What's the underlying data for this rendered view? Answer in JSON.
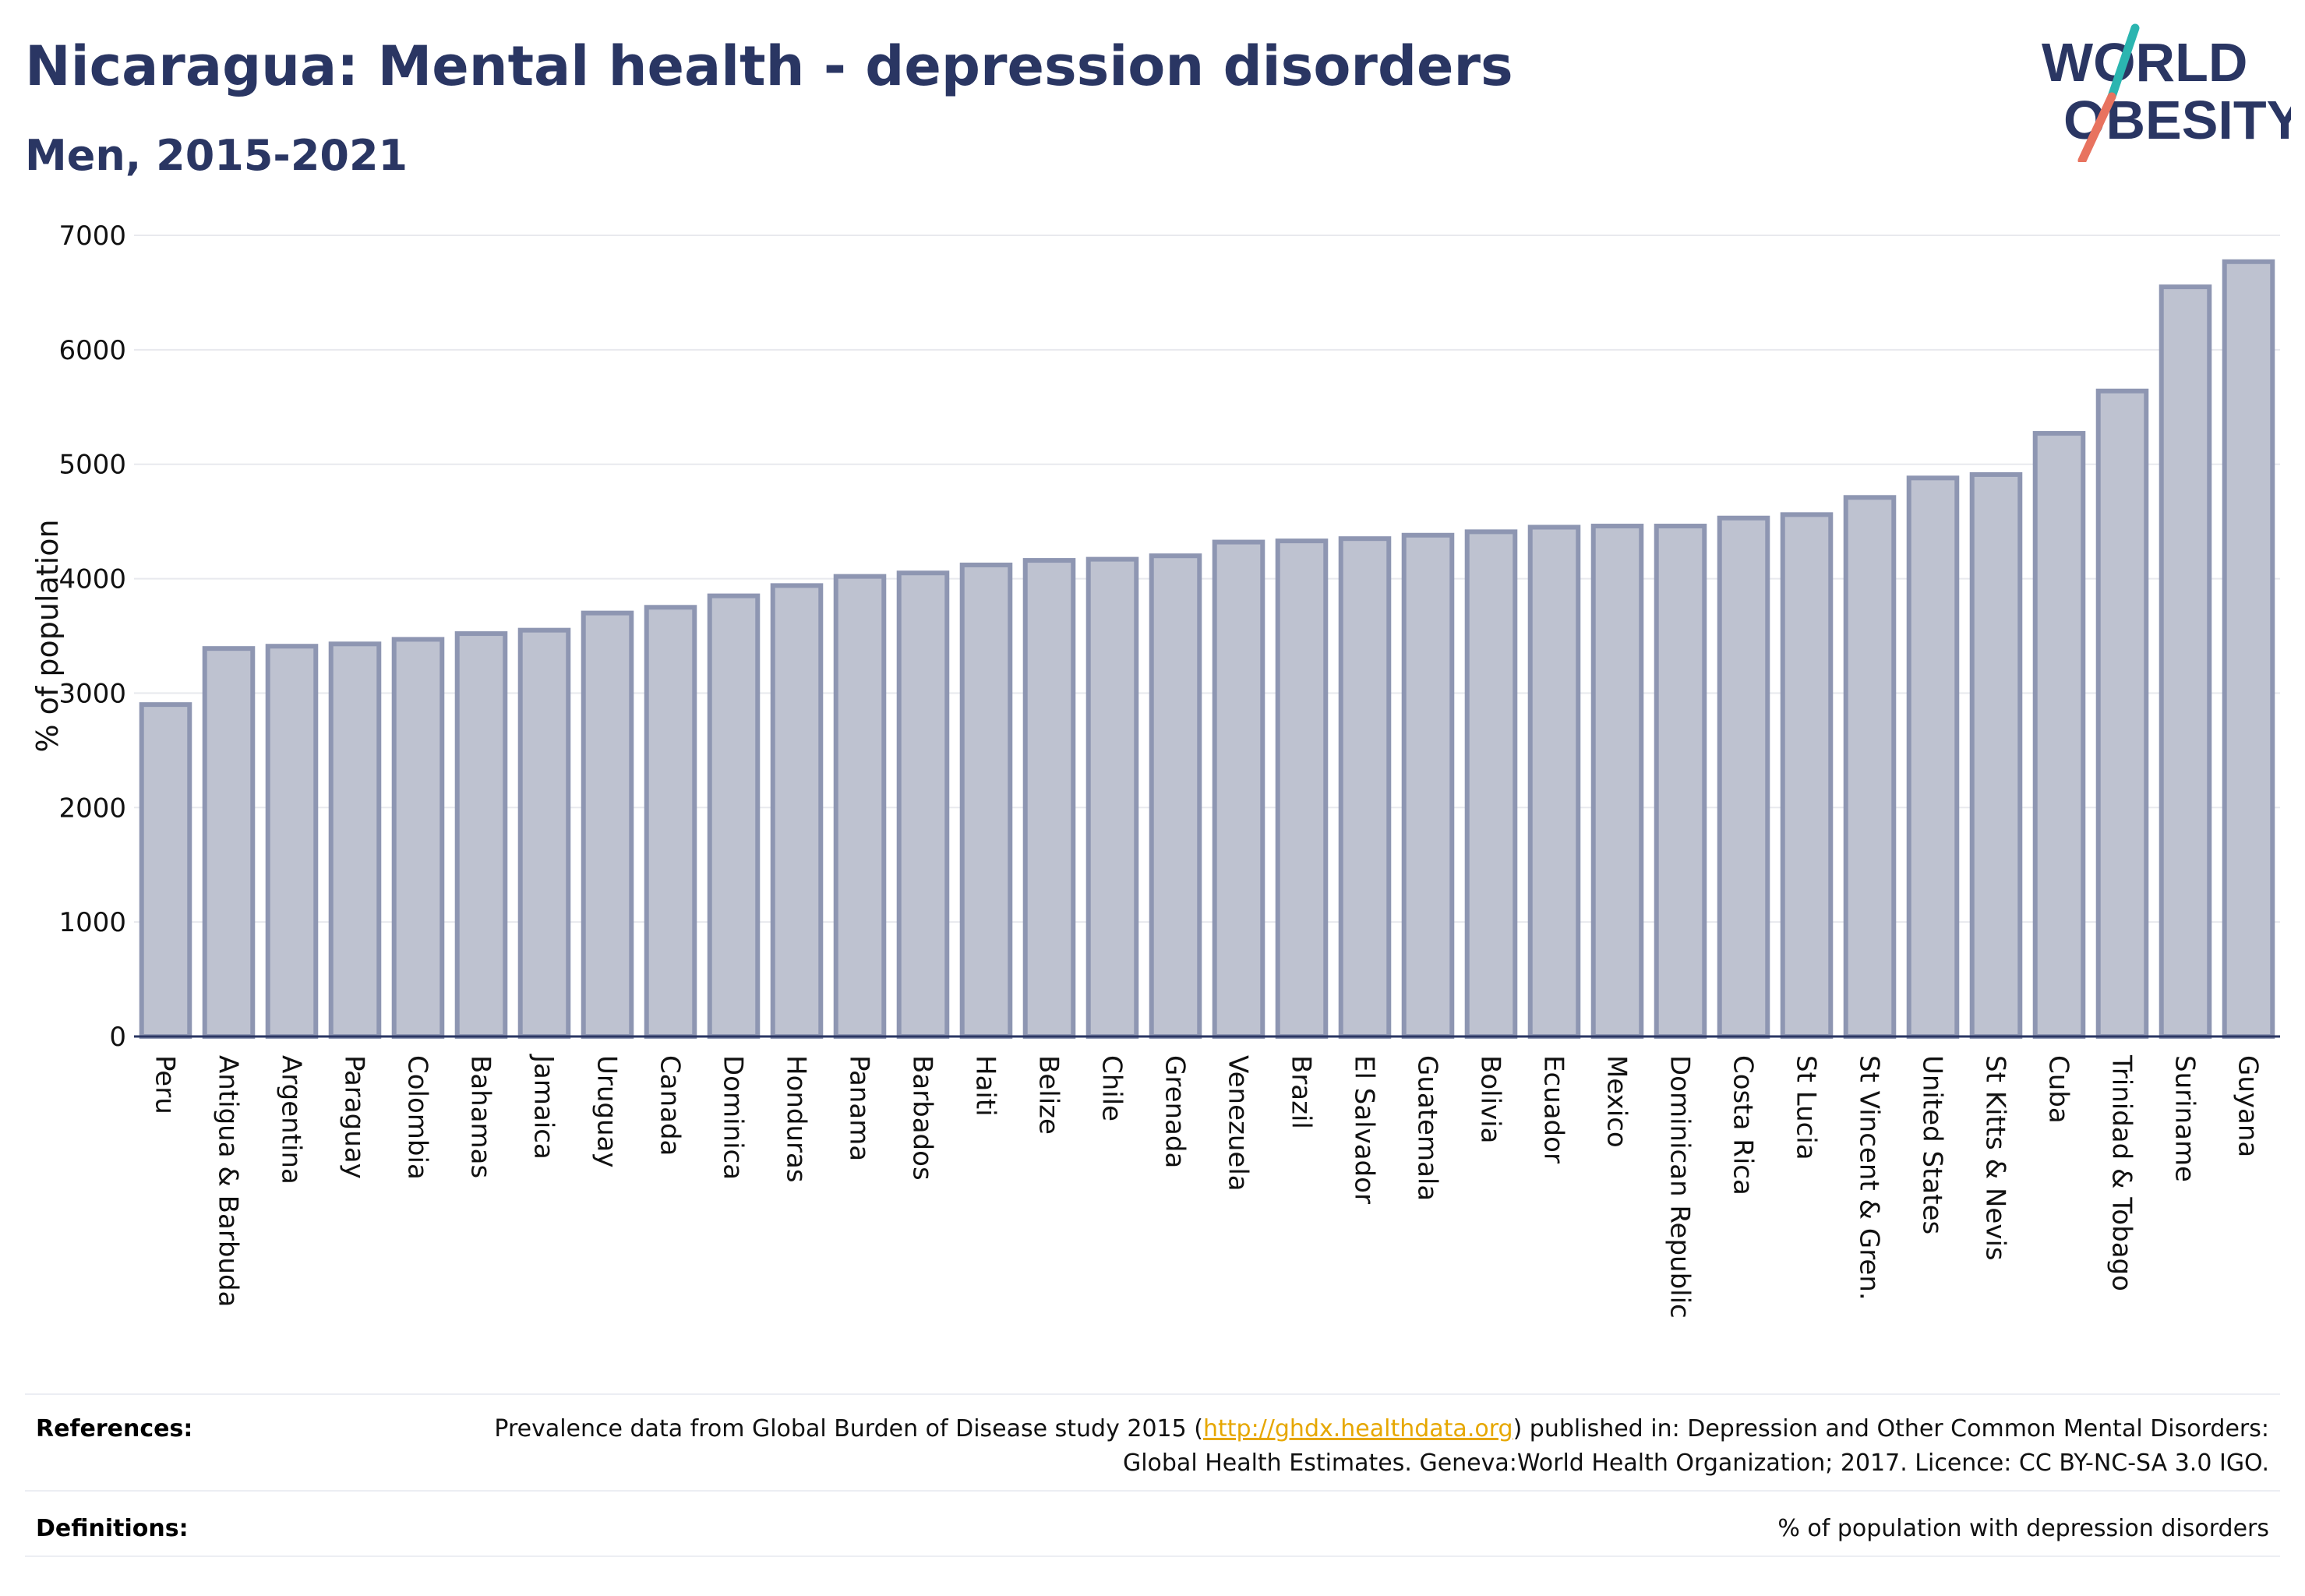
{
  "header": {
    "title": "Nicaragua: Mental health - depression disorders",
    "subtitle": "Men, 2015-2021"
  },
  "logo": {
    "line1": "WORLD",
    "line2": "OBESITY",
    "accent_teal": "#2bb5b0",
    "accent_coral": "#e8735f"
  },
  "chart_data": {
    "type": "bar",
    "ylabel": "% of population",
    "ylim": [
      0,
      7000
    ],
    "yticks": [
      0,
      1000,
      2000,
      3000,
      4000,
      5000,
      6000,
      7000
    ],
    "grid": true,
    "bar_color": "#bec2d0",
    "bar_edge_color": "#8e96b2",
    "categories": [
      "Peru",
      "Antigua & Barbuda",
      "Argentina",
      "Paraguay",
      "Colombia",
      "Bahamas",
      "Jamaica",
      "Uruguay",
      "Canada",
      "Dominica",
      "Honduras",
      "Panama",
      "Barbados",
      "Haiti",
      "Belize",
      "Chile",
      "Grenada",
      "Venezuela",
      "Brazil",
      "El Salvador",
      "Guatemala",
      "Bolivia",
      "Ecuador",
      "Mexico",
      "Dominican Republic",
      "Costa Rica",
      "St Lucia",
      "St Vincent & Gren.",
      "United States",
      "St Kitts & Nevis",
      "Cuba",
      "Trinidad & Tobago",
      "Suriname",
      "Guyana"
    ],
    "values": [
      2900,
      3390,
      3410,
      3430,
      3470,
      3520,
      3550,
      3700,
      3750,
      3850,
      3940,
      4020,
      4050,
      4120,
      4160,
      4170,
      4200,
      4320,
      4330,
      4350,
      4380,
      4410,
      4450,
      4460,
      4460,
      4530,
      4560,
      4710,
      4880,
      4910,
      5270,
      5640,
      6550,
      6770
    ]
  },
  "footer": {
    "references_label": "References:",
    "references_pre": "Prevalence data from Global Burden of Disease study 2015 (",
    "references_link": "http://ghdx.healthdata.org",
    "references_post": ") published in: Depression and Other Common Mental Disorders: Global Health Estimates. Geneva:World Health Organization; 2017. Licence: CC BY-NC-SA 3.0 IGO.",
    "definitions_label": "Definitions:",
    "definitions_text": "% of population with depression disorders"
  }
}
